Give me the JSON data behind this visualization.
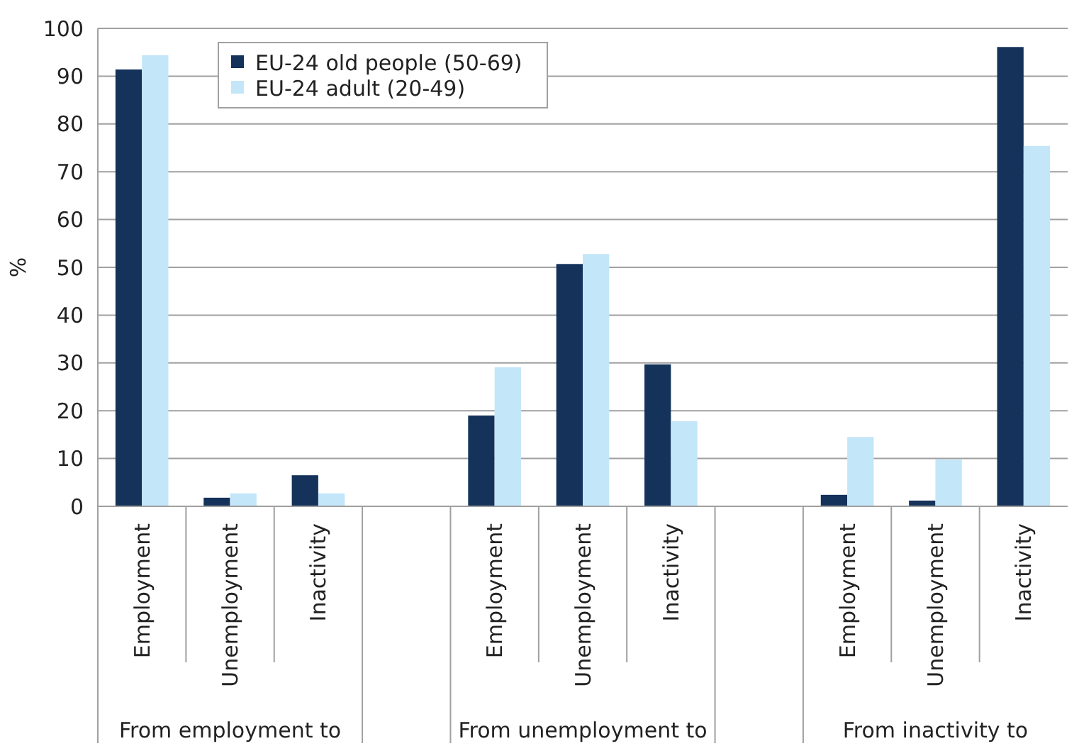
{
  "chart_data": {
    "type": "bar",
    "ylabel": "%",
    "categories": [
      "Employment",
      "Unemployment",
      "Inactivity",
      null,
      "Employment",
      "Unemployment",
      "Inactivity",
      null,
      "Employment",
      "Unemployment",
      "Inactivity"
    ],
    "series": [
      {
        "name": "EU-24 old people (50-69)",
        "color": "#14325a",
        "values": [
          91.4,
          1.8,
          6.5,
          null,
          19,
          50.7,
          29.7,
          null,
          2.4,
          1.2,
          96.1
        ]
      },
      {
        "name": "EU-24 adult (20-49)",
        "color": "#c3e6f9",
        "values": [
          94.4,
          2.7,
          2.7,
          null,
          29.1,
          52.8,
          17.8,
          null,
          14.5,
          9.8,
          75.4
        ]
      }
    ],
    "ylim": [
      0,
      100
    ],
    "yticks": [
      0,
      10,
      20,
      30,
      40,
      50,
      60,
      70,
      80,
      90,
      100
    ],
    "grid": "y",
    "legend": "top left",
    "annotations": [
      "From employment to",
      "From unemployment to",
      "From inactivity to"
    ]
  }
}
